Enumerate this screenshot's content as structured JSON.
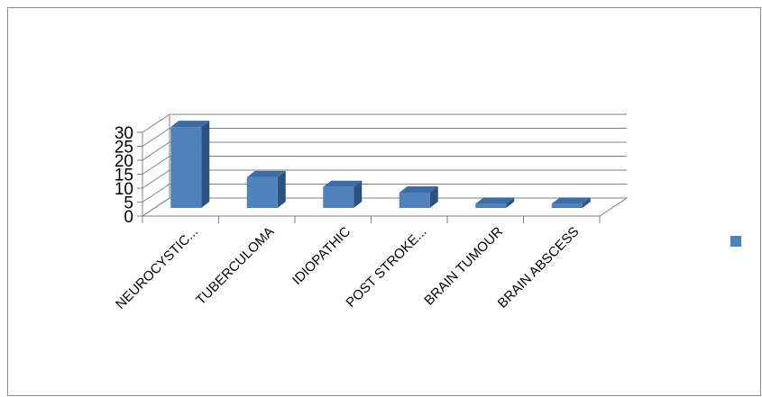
{
  "chart_data": {
    "type": "bar",
    "categories": [
      "NEUROCYSTIC...",
      "TUBERCULOMA",
      "IDIOPATHIC",
      "POST STROKE...",
      "BRAIN TUMOUR",
      "BRAIN ABSCESS"
    ],
    "series": [
      {
        "values": [
          29,
          11,
          7.5,
          5.5,
          1.5,
          1.5
        ],
        "color": "#4f81bd"
      }
    ],
    "ylim": [
      0,
      30
    ],
    "yticks": [
      0,
      5,
      10,
      15,
      20,
      25,
      30
    ],
    "grid": true,
    "style": "3d-column",
    "legend": "right"
  }
}
